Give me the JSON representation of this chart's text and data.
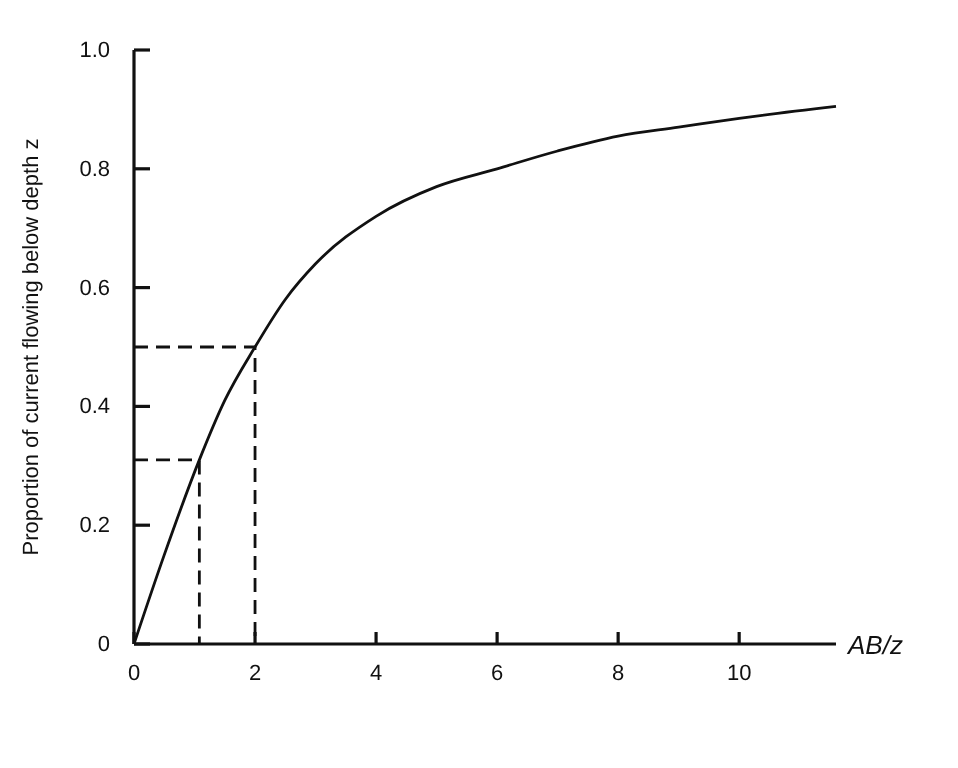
{
  "chart_data": {
    "type": "line",
    "xlabel": "AB/z",
    "ylabel": "Proportion of current flowing below depth z",
    "xlim": [
      0,
      11.6
    ],
    "ylim": [
      0,
      1
    ],
    "xticks": [
      0,
      2,
      4,
      6,
      8,
      10
    ],
    "yticks": [
      0,
      {
        "value": 0.2,
        "label": "0.2"
      },
      {
        "value": 0.4,
        "label": "0.4"
      },
      {
        "value": 0.6,
        "label": "0.6"
      },
      {
        "value": 0.8,
        "label": "0.8"
      },
      {
        "value": 1,
        "label": "1.0"
      }
    ],
    "series": [
      {
        "color": "#111111",
        "line_style": "solid",
        "x": [
          0,
          0.5,
          1.08,
          1.5,
          2,
          2.5,
          3,
          4,
          5,
          6,
          7,
          8,
          9,
          10,
          11.6
        ],
        "values": [
          0,
          0.15,
          0.31,
          0.41,
          0.5,
          0.58,
          0.64,
          0.72,
          0.77,
          0.8,
          0.83,
          0.855,
          0.87,
          0.885,
          0.905
        ]
      },
      {
        "color": "#111111",
        "line_style": "dashed",
        "x": [
          0,
          2,
          2
        ],
        "values": [
          0.5,
          0.5,
          0
        ]
      },
      {
        "color": "#111111",
        "line_style": "dashed",
        "x": [
          0,
          1.08,
          1.08
        ],
        "values": [
          0.31,
          0.31,
          0
        ]
      }
    ],
    "grid": false
  }
}
